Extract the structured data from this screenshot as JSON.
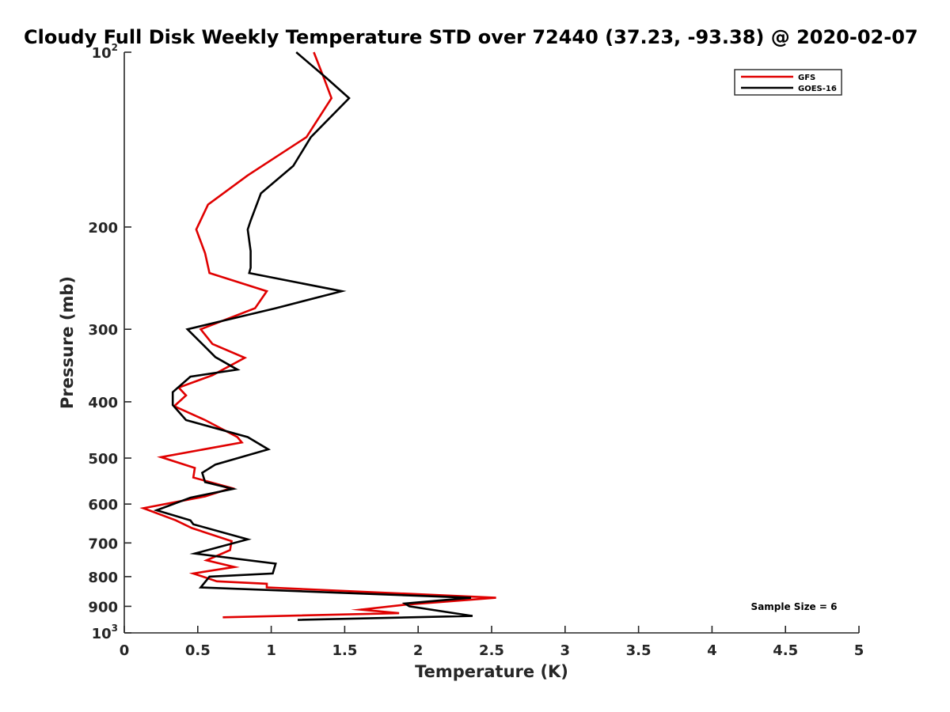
{
  "chart_data": {
    "type": "line",
    "title": "Cloudy Full Disk Weekly Temperature STD over 72440 (37.23, -93.38) @ 2020-02-07",
    "xlabel": "Temperature (K)",
    "ylabel": "Pressure (mb)",
    "xlim": [
      0,
      5
    ],
    "ylim": [
      100,
      1000
    ],
    "y_scale": "log",
    "y_reversed": true,
    "x_ticks": [
      "0",
      "0.5",
      "1",
      "1.5",
      "2",
      "2.5",
      "3",
      "3.5",
      "4",
      "4.5",
      "5"
    ],
    "y_ticks": [
      {
        "value": 100,
        "label": "10",
        "sup": "2"
      },
      {
        "value": 200,
        "label": "200",
        "sup": ""
      },
      {
        "value": 300,
        "label": "300",
        "sup": ""
      },
      {
        "value": 400,
        "label": "400",
        "sup": ""
      },
      {
        "value": 500,
        "label": "500",
        "sup": ""
      },
      {
        "value": 600,
        "label": "600",
        "sup": ""
      },
      {
        "value": 700,
        "label": "700",
        "sup": ""
      },
      {
        "value": 800,
        "label": "800",
        "sup": ""
      },
      {
        "value": 900,
        "label": "900",
        "sup": ""
      },
      {
        "value": 1000,
        "label": "10",
        "sup": "3"
      }
    ],
    "grid": false,
    "legend_position": "top-right",
    "series": [
      {
        "name": "GFS",
        "color": "#e00000",
        "x": [
          1.29,
          1.36,
          1.41,
          1.24,
          0.84,
          0.57,
          0.49,
          0.55,
          0.58,
          0.97,
          0.89,
          0.52,
          0.6,
          0.82,
          0.6,
          0.37,
          0.42,
          0.34,
          0.55,
          0.77,
          0.8,
          0.25,
          0.48,
          0.47,
          0.73,
          0.55,
          0.13,
          0.35,
          0.46,
          0.73,
          0.72,
          0.56,
          0.75,
          0.47,
          0.63,
          0.97,
          0.97,
          2.53,
          1.9,
          1.61,
          1.87,
          0.67
        ],
        "y": [
          100,
          111,
          120,
          140,
          163,
          183,
          202,
          222,
          240,
          258,
          276,
          300,
          318,
          336,
          360,
          378,
          390,
          407,
          430,
          460,
          470,
          498,
          520,
          540,
          563,
          582,
          610,
          640,
          660,
          695,
          720,
          750,
          770,
          790,
          815,
          823,
          835,
          870,
          895,
          912,
          925,
          940
        ]
      },
      {
        "name": "GOES-16",
        "color": "#000000",
        "x": [
          1.17,
          1.38,
          1.53,
          1.27,
          1.15,
          0.93,
          0.86,
          0.84,
          0.86,
          0.86,
          0.85,
          1.48,
          1.03,
          0.43,
          0.62,
          0.77,
          0.45,
          0.33,
          0.33,
          0.42,
          0.84,
          0.98,
          0.62,
          0.53,
          0.55,
          0.74,
          0.45,
          0.22,
          0.45,
          0.47,
          0.75,
          0.84,
          0.48,
          1.03,
          1.01,
          0.58,
          0.52,
          2.36,
          1.91,
          1.94,
          2.37,
          1.18
        ],
        "y": [
          100,
          111,
          120,
          140,
          157,
          175,
          195,
          202,
          220,
          235,
          240,
          258,
          276,
          300,
          335,
          352,
          362,
          385,
          405,
          430,
          460,
          483,
          513,
          530,
          550,
          565,
          585,
          615,
          640,
          650,
          680,
          690,
          730,
          760,
          790,
          800,
          835,
          870,
          890,
          900,
          935,
          950
        ]
      }
    ],
    "annotations": [
      "Sample Size = 6"
    ]
  }
}
